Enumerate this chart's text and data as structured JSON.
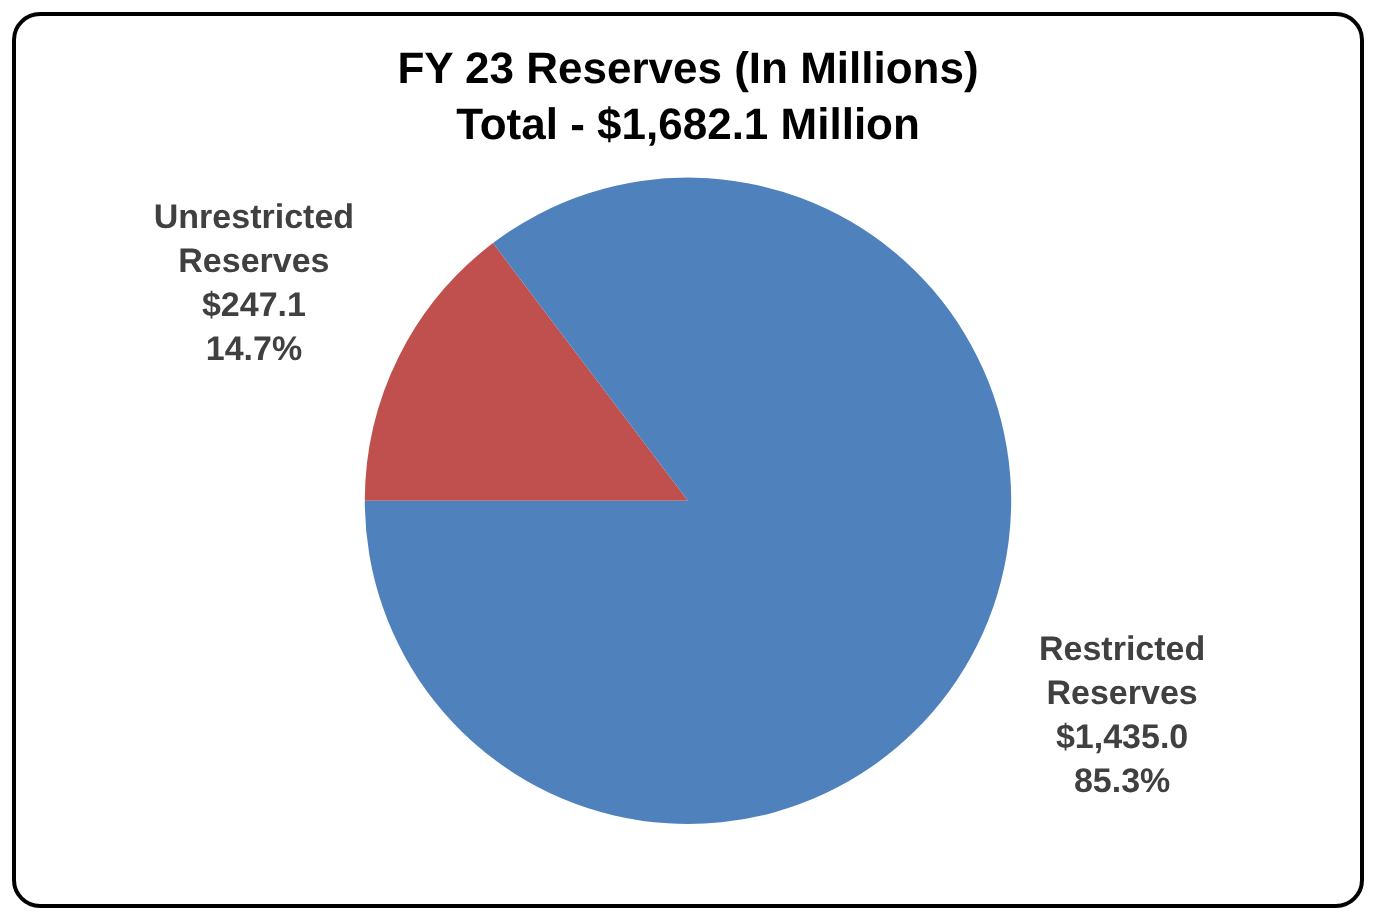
{
  "chart_data": {
    "type": "pie",
    "title": "FY 23 Reserves (In Millions)",
    "subtitle": "Total - $1,682.1 Million",
    "categories": [
      "Unrestricted Reserves",
      "Restricted Reserves"
    ],
    "values": [
      247.1,
      1435.0
    ],
    "colors": [
      "#c0504d",
      "#4f81bd"
    ],
    "value_labels": [
      "$247.1\n14.7%",
      "$1,435.0\n85.3%"
    ],
    "legend": false
  }
}
